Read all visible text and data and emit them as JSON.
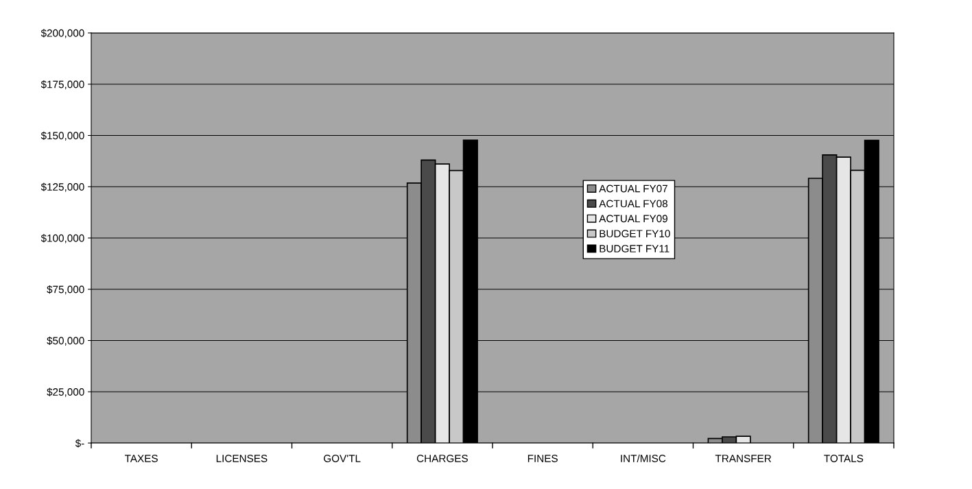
{
  "chart_data": {
    "type": "bar",
    "categories": [
      "TAXES",
      "LICENSES",
      "GOV'TL",
      "CHARGES",
      "FINES",
      "INT/MISC",
      "TRANSFER",
      "TOTALS"
    ],
    "series": [
      {
        "name": "ACTUAL FY07",
        "color": "#8c8c8c",
        "values": [
          0,
          0,
          0,
          126800,
          0,
          0,
          2200,
          129100
        ]
      },
      {
        "name": "ACTUAL FY08",
        "color": "#4a4a4a",
        "values": [
          0,
          0,
          0,
          138000,
          0,
          0,
          3000,
          140500
        ]
      },
      {
        "name": "ACTUAL FY09",
        "color": "#e6e6e6",
        "values": [
          0,
          0,
          0,
          136100,
          0,
          0,
          3300,
          139400
        ]
      },
      {
        "name": "BUDGET FY10",
        "color": "#c8c8c8",
        "values": [
          0,
          0,
          0,
          132900,
          0,
          0,
          0,
          133000
        ]
      },
      {
        "name": "BUDGET FY11",
        "color": "#000000",
        "values": [
          0,
          0,
          0,
          147700,
          0,
          0,
          0,
          147600
        ]
      }
    ],
    "ylim": [
      0,
      200000
    ],
    "yticks": [
      {
        "value": 0,
        "label": "$-"
      },
      {
        "value": 25000,
        "label": "$25,000"
      },
      {
        "value": 50000,
        "label": "$50,000"
      },
      {
        "value": 75000,
        "label": "$75,000"
      },
      {
        "value": 100000,
        "label": "$100,000"
      },
      {
        "value": 125000,
        "label": "$125,000"
      },
      {
        "value": 150000,
        "label": "$150,000"
      },
      {
        "value": 175000,
        "label": "$175,000"
      },
      {
        "value": 200000,
        "label": "$200,000"
      }
    ],
    "grid": "y",
    "legend": "center"
  }
}
